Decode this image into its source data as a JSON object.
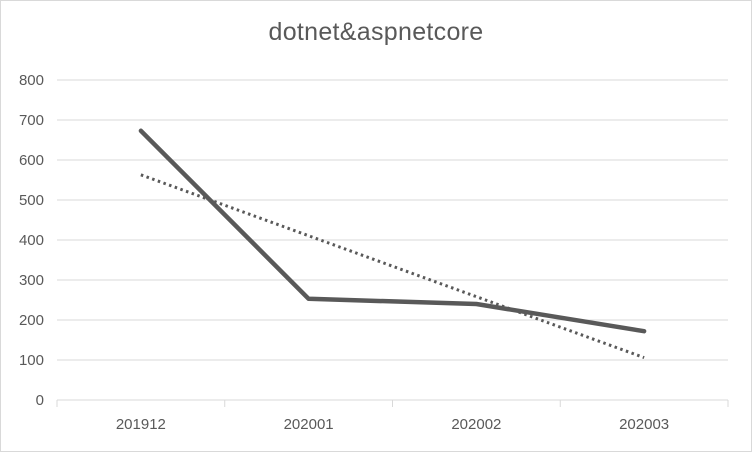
{
  "chart_data": {
    "type": "line",
    "title": "dotnet&aspnetcore",
    "xlabel": "",
    "ylabel": "",
    "categories": [
      "201912",
      "202001",
      "202002",
      "202003"
    ],
    "series": [
      {
        "values": [
          673,
          253,
          240,
          172
        ],
        "color": "#595959",
        "style": "solid"
      }
    ],
    "trendline": {
      "kind": "linear",
      "values": [
        563,
        410,
        258,
        106
      ],
      "color": "#595959",
      "style": "dotted"
    },
    "ylim": [
      0,
      800
    ],
    "yticks": [
      0,
      100,
      200,
      300,
      400,
      500,
      600,
      700,
      800
    ],
    "grid": true,
    "legend": "none"
  }
}
